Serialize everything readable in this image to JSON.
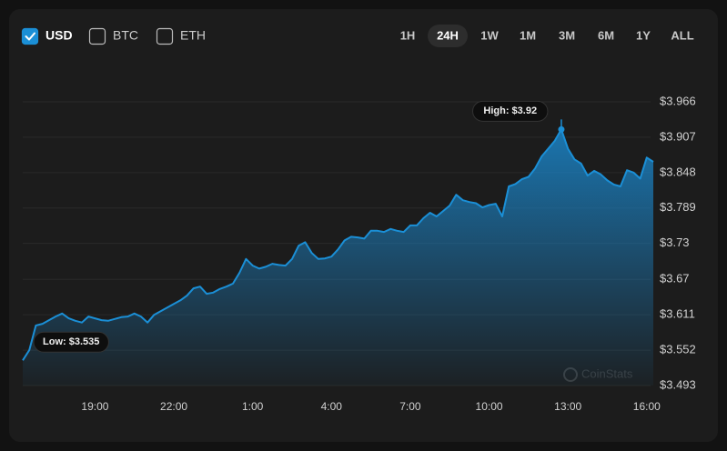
{
  "currencies": [
    {
      "label": "USD",
      "checked": true
    },
    {
      "label": "BTC",
      "checked": false
    },
    {
      "label": "ETH",
      "checked": false
    }
  ],
  "ranges": [
    {
      "label": "1H",
      "active": false
    },
    {
      "label": "24H",
      "active": true
    },
    {
      "label": "1W",
      "active": false
    },
    {
      "label": "1M",
      "active": false
    },
    {
      "label": "3M",
      "active": false
    },
    {
      "label": "6M",
      "active": false
    },
    {
      "label": "1Y",
      "active": false
    },
    {
      "label": "ALL",
      "active": false
    }
  ],
  "watermark": "CoinStats",
  "chart_data": {
    "type": "line",
    "color": "#1b8fd6",
    "grid": true,
    "categories": [
      null,
      null,
      null,
      null,
      null,
      null,
      null,
      null,
      null,
      null,
      null,
      "19:00",
      null,
      null,
      null,
      null,
      null,
      null,
      null,
      null,
      null,
      null,
      null,
      "22:00",
      null,
      null,
      null,
      null,
      null,
      null,
      null,
      null,
      null,
      null,
      null,
      "1:00",
      null,
      null,
      null,
      null,
      null,
      null,
      null,
      null,
      null,
      null,
      null,
      "4:00",
      null,
      null,
      null,
      null,
      null,
      null,
      null,
      null,
      null,
      null,
      null,
      "7:00",
      null,
      null,
      null,
      null,
      null,
      null,
      null,
      null,
      null,
      null,
      null,
      "10:00",
      null,
      null,
      null,
      null,
      null,
      null,
      null,
      null,
      null,
      null,
      null,
      "13:00",
      null,
      null,
      null,
      null,
      null,
      null,
      null,
      null,
      null,
      null,
      null,
      "16:00",
      null
    ],
    "values": [
      3.535,
      3.552,
      3.593,
      3.596,
      3.602,
      3.608,
      3.613,
      3.605,
      3.601,
      3.598,
      3.608,
      3.605,
      3.602,
      3.601,
      3.604,
      3.607,
      3.608,
      3.613,
      3.608,
      3.598,
      3.611,
      3.617,
      3.623,
      3.629,
      3.635,
      3.643,
      3.655,
      3.658,
      3.646,
      3.648,
      3.654,
      3.658,
      3.663,
      3.681,
      3.704,
      3.693,
      3.688,
      3.691,
      3.696,
      3.694,
      3.693,
      3.704,
      3.726,
      3.732,
      3.714,
      3.704,
      3.705,
      3.708,
      3.72,
      3.735,
      3.741,
      3.74,
      3.738,
      3.751,
      3.751,
      3.749,
      3.754,
      3.751,
      3.749,
      3.76,
      3.76,
      3.772,
      3.781,
      3.775,
      3.784,
      3.793,
      3.811,
      3.802,
      3.799,
      3.797,
      3.79,
      3.794,
      3.796,
      3.775,
      3.825,
      3.829,
      3.837,
      3.841,
      3.855,
      3.875,
      3.888,
      3.901,
      3.92,
      3.888,
      3.87,
      3.863,
      3.843,
      3.851,
      3.845,
      3.835,
      3.828,
      3.825,
      3.852,
      3.848,
      3.838,
      3.873,
      3.866
    ],
    "value_labels": [
      "Low: $3.535",
      null,
      null,
      null,
      null,
      null,
      null,
      null,
      null,
      null,
      null,
      null,
      null,
      null,
      null,
      null,
      null,
      null,
      null,
      null,
      null,
      null,
      null,
      null,
      null,
      null,
      null,
      null,
      null,
      null,
      null,
      null,
      null,
      null,
      null,
      null,
      null,
      null,
      null,
      null,
      null,
      null,
      null,
      null,
      null,
      null,
      null,
      null,
      null,
      null,
      null,
      null,
      null,
      null,
      null,
      null,
      null,
      null,
      null,
      null,
      null,
      null,
      null,
      null,
      null,
      null,
      null,
      null,
      null,
      null,
      null,
      null,
      null,
      null,
      null,
      null,
      null,
      null,
      null,
      null,
      null,
      null,
      "High: $3.92",
      null,
      null,
      null,
      null,
      null,
      null,
      null,
      null,
      null,
      null,
      null,
      null,
      null,
      null
    ],
    "ylim": [
      3.493,
      3.966
    ],
    "yticks": [
      {
        "value": 3.493,
        "label": "$3.493"
      },
      {
        "value": 3.552,
        "label": "$3.552"
      },
      {
        "value": 3.611,
        "label": "$3.611"
      },
      {
        "value": 3.67,
        "label": "$3.67"
      },
      {
        "value": 3.73,
        "label": "$3.73"
      },
      {
        "value": 3.789,
        "label": "$3.789"
      },
      {
        "value": 3.848,
        "label": "$3.848"
      },
      {
        "value": 3.907,
        "label": "$3.907"
      },
      {
        "value": 3.966,
        "label": "$3.966"
      }
    ]
  }
}
